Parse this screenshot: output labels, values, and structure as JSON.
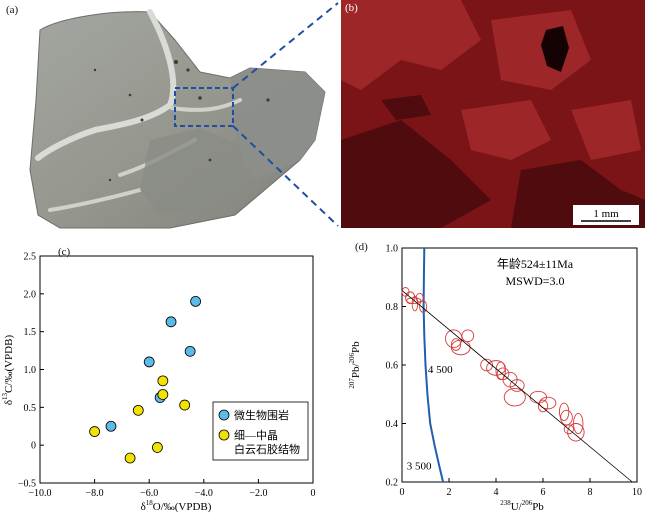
{
  "panel_labels": {
    "a": "(a)",
    "b": "(b)",
    "c": "(c)",
    "d": "(d)"
  },
  "scale_bar": {
    "label": "1 mm"
  },
  "colors": {
    "rock_gray": "#9a9c98",
    "rock_light": "#cfd1cc",
    "cl_red": "#8a1a1e",
    "cl_dark": "#3a0608",
    "dash_blue": "#1f4fa0",
    "micro_fill": "#5bbbe6",
    "dolo_fill": "#f2e200",
    "ellipse_red": "#d83a3a",
    "concordia_blue": "#1f5fae"
  },
  "chart_data": [
    {
      "type": "scatter",
      "panel": "(c)",
      "xlabel_parts": [
        "δ",
        "18",
        "O/‰(VPDB)"
      ],
      "ylabel_parts": [
        "δ",
        "13",
        "C/‰(VPDB)"
      ],
      "xlim": [
        -10.0,
        0
      ],
      "ylim": [
        -0.5,
        2.5
      ],
      "x_ticks": [
        -10.0,
        -8.0,
        -6.0,
        -4.0,
        -2.0,
        0
      ],
      "x_tick_labels": [
        "−10.0",
        "−8.0",
        "−6.0",
        "−4.0",
        "−2.0",
        "0"
      ],
      "y_ticks": [
        -0.5,
        0,
        0.5,
        1.0,
        1.5,
        2.0,
        2.5
      ],
      "y_tick_labels": [
        "−0.5",
        "0",
        "0.5",
        "1.0",
        "1.5",
        "2.0",
        "2.5"
      ],
      "grid": false,
      "legend_position": "bottom-right",
      "series": [
        {
          "name": "微生物围岩",
          "color": "#5bbbe6",
          "points": [
            [
              -4.3,
              1.9
            ],
            [
              -5.2,
              1.63
            ],
            [
              -4.5,
              1.24
            ],
            [
              -6.0,
              1.1
            ],
            [
              -5.6,
              0.63
            ],
            [
              -7.4,
              0.25
            ]
          ]
        },
        {
          "name_lines": [
            "细—中晶",
            "白云石胶结物"
          ],
          "color": "#f2e200",
          "points": [
            [
              -5.5,
              0.85
            ],
            [
              -5.5,
              0.67
            ],
            [
              -4.7,
              0.53
            ],
            [
              -6.4,
              0.46
            ],
            [
              -8.0,
              0.18
            ],
            [
              -5.7,
              -0.03
            ],
            [
              -6.7,
              -0.17
            ]
          ]
        }
      ]
    },
    {
      "type": "scatter",
      "panel": "(d)",
      "xlabel_parts": [
        "238",
        "U/",
        "206",
        "Pb"
      ],
      "ylabel_parts": [
        "207",
        "Pb/",
        "206",
        "Pb"
      ],
      "xlim": [
        0,
        10
      ],
      "ylim": [
        0.2,
        1.0
      ],
      "x_ticks": [
        0,
        2,
        4,
        6,
        8,
        10
      ],
      "y_ticks": [
        0.2,
        0.4,
        0.6,
        0.8,
        1.0
      ],
      "y_tick_labels": [
        "0.2",
        "0.4",
        "0.6",
        "0.8",
        "1.0"
      ],
      "annotations": {
        "age": "年龄524±11Ma",
        "mswd": "MSWD=3.0"
      },
      "concordia_labels": [
        {
          "label": "4 500",
          "x": 1.1,
          "y": 0.572
        },
        {
          "label": "3 500",
          "x": 0.2,
          "y": 0.242
        }
      ],
      "regression_line": {
        "x": [
          0,
          9.8
        ],
        "y": [
          0.855,
          0.2
        ]
      },
      "ellipses": [
        {
          "x": 0.15,
          "y": 0.85,
          "rx": 0.15,
          "ry": 0.015
        },
        {
          "x": 0.35,
          "y": 0.83,
          "rx": 0.2,
          "ry": 0.02
        },
        {
          "x": 0.55,
          "y": 0.81,
          "rx": 0.12,
          "ry": 0.025
        },
        {
          "x": 0.75,
          "y": 0.83,
          "rx": 0.15,
          "ry": 0.015
        },
        {
          "x": 0.9,
          "y": 0.8,
          "rx": 0.15,
          "ry": 0.02
        },
        {
          "x": 0.5,
          "y": 0.82,
          "rx": 0.3,
          "ry": 0.01
        },
        {
          "x": 2.2,
          "y": 0.69,
          "rx": 0.35,
          "ry": 0.03
        },
        {
          "x": 2.5,
          "y": 0.66,
          "rx": 0.4,
          "ry": 0.025
        },
        {
          "x": 2.8,
          "y": 0.7,
          "rx": 0.25,
          "ry": 0.02
        },
        {
          "x": 2.3,
          "y": 0.67,
          "rx": 0.2,
          "ry": 0.02
        },
        {
          "x": 3.6,
          "y": 0.6,
          "rx": 0.25,
          "ry": 0.02
        },
        {
          "x": 4.0,
          "y": 0.59,
          "rx": 0.4,
          "ry": 0.025
        },
        {
          "x": 4.3,
          "y": 0.57,
          "rx": 0.25,
          "ry": 0.02
        },
        {
          "x": 4.6,
          "y": 0.55,
          "rx": 0.3,
          "ry": 0.025
        },
        {
          "x": 4.9,
          "y": 0.53,
          "rx": 0.3,
          "ry": 0.02
        },
        {
          "x": 4.2,
          "y": 0.58,
          "rx": 0.2,
          "ry": 0.03
        },
        {
          "x": 4.8,
          "y": 0.49,
          "rx": 0.45,
          "ry": 0.03
        },
        {
          "x": 5.8,
          "y": 0.49,
          "rx": 0.35,
          "ry": 0.02
        },
        {
          "x": 6.2,
          "y": 0.47,
          "rx": 0.35,
          "ry": 0.02
        },
        {
          "x": 6.0,
          "y": 0.46,
          "rx": 0.2,
          "ry": 0.02
        },
        {
          "x": 6.9,
          "y": 0.44,
          "rx": 0.2,
          "ry": 0.03
        },
        {
          "x": 7.0,
          "y": 0.42,
          "rx": 0.25,
          "ry": 0.025
        },
        {
          "x": 7.4,
          "y": 0.37,
          "rx": 0.35,
          "ry": 0.03
        },
        {
          "x": 7.5,
          "y": 0.4,
          "rx": 0.2,
          "ry": 0.035
        },
        {
          "x": 7.1,
          "y": 0.38,
          "rx": 0.2,
          "ry": 0.015
        }
      ]
    }
  ]
}
